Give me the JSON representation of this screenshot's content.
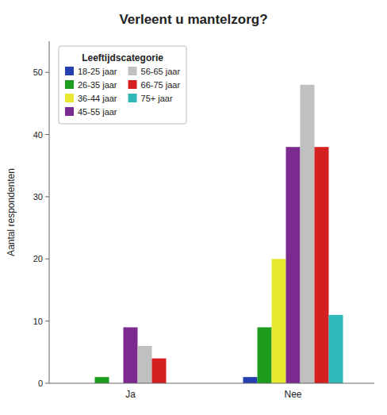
{
  "chart_data": {
    "type": "bar",
    "title": "Verleent u mantelzorg?",
    "ylabel": "Aantal respondenten",
    "categories": [
      "Ja",
      "Nee"
    ],
    "legend_title": "Leeftijdscategorie",
    "series": [
      {
        "name": "18-25 jaar",
        "color": "#2440b0",
        "values": [
          0,
          1
        ]
      },
      {
        "name": "26-35 jaar",
        "color": "#1e9c1e",
        "values": [
          1,
          9
        ]
      },
      {
        "name": "36-44 jaar",
        "color": "#e8e830",
        "values": [
          0,
          20
        ]
      },
      {
        "name": "45-55 jaar",
        "color": "#7b2a90",
        "values": [
          9,
          38
        ]
      },
      {
        "name": "56-65 jaar",
        "color": "#c0c0c0",
        "values": [
          6,
          48
        ]
      },
      {
        "name": "66-75 jaar",
        "color": "#d42020",
        "values": [
          4,
          38
        ]
      },
      {
        "name": "75+ jaar",
        "color": "#30b8b8",
        "values": [
          0,
          11
        ]
      }
    ],
    "ylim": [
      0,
      55
    ],
    "yticks": [
      0,
      10,
      20,
      30,
      40,
      50
    ],
    "grid": false,
    "legend": "upper left"
  }
}
